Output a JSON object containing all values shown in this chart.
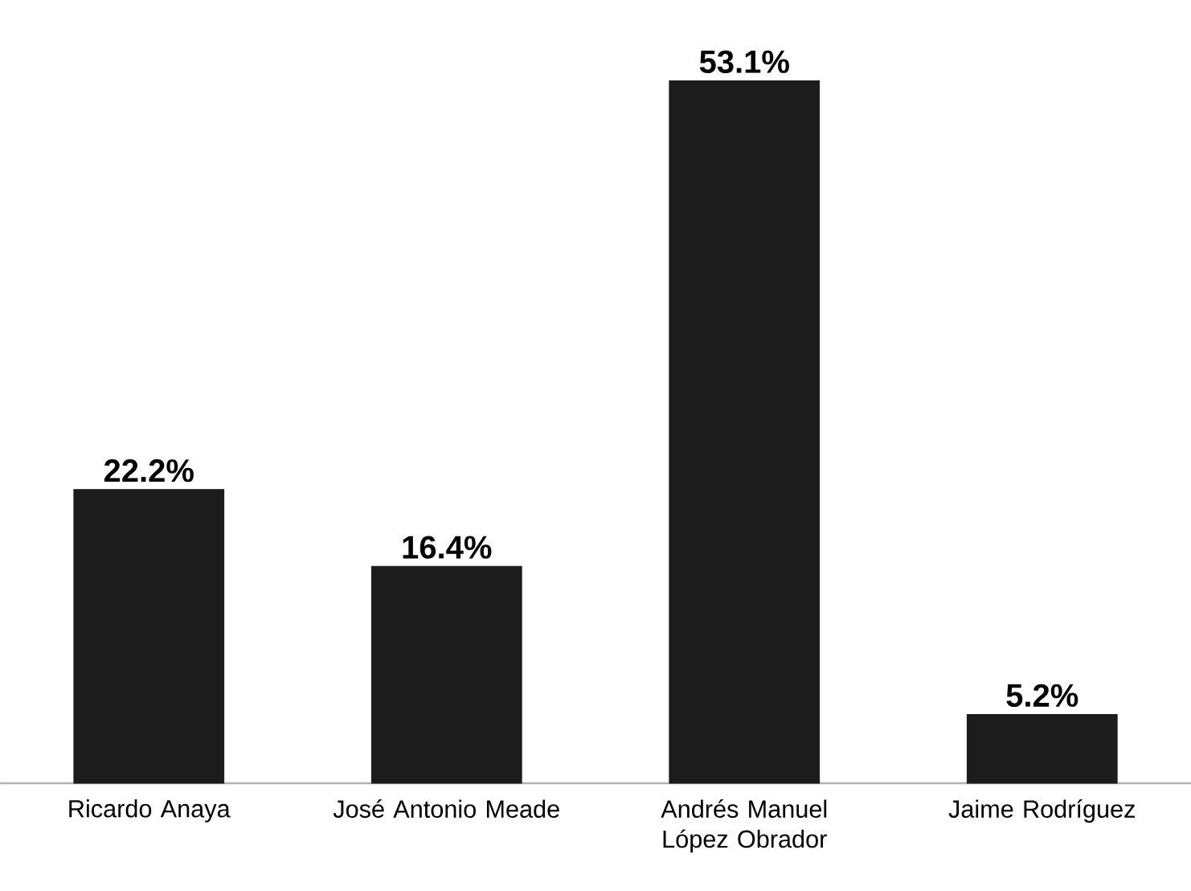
{
  "chart_data": {
    "type": "bar",
    "categories": [
      "Ricardo Anaya",
      "José Antonio Meade",
      "Andrés Manuel López Obrador",
      "Jaime Rodríguez"
    ],
    "values": [
      22.2,
      16.4,
      53.1,
      5.2
    ],
    "value_labels": [
      "22.2%",
      "16.4%",
      "53.1%",
      "5.2%"
    ],
    "color": "#1c1c1c"
  }
}
